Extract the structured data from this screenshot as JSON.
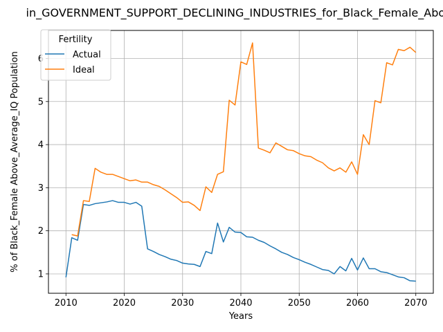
{
  "chart_data": {
    "type": "line",
    "title": "in_GOVERNMENT_SUPPORT_DECLINING_INDUSTRIES_for_Black_Female_Above",
    "xlabel": "Years",
    "ylabel": "% of Black_Female Above_Average_IQ Population",
    "xlim": [
      2007,
      2073
    ],
    "ylim": [
      0.55,
      6.65
    ],
    "xticks": [
      2010,
      2020,
      2030,
      2040,
      2050,
      2060,
      2070
    ],
    "yticks": [
      1,
      2,
      3,
      4,
      5,
      6
    ],
    "grid": true,
    "legend": {
      "title": "Fertility",
      "placement": "top-left"
    },
    "series": [
      {
        "name": "Actual",
        "color": "#1f77b4",
        "x": [
          2010,
          2011,
          2012,
          2013,
          2014,
          2015,
          2016,
          2017,
          2018,
          2019,
          2020,
          2021,
          2022,
          2023,
          2024,
          2025,
          2026,
          2027,
          2028,
          2029,
          2030,
          2031,
          2032,
          2033,
          2034,
          2035,
          2036,
          2037,
          2038,
          2039,
          2040,
          2041,
          2042,
          2043,
          2044,
          2045,
          2046,
          2047,
          2048,
          2049,
          2050,
          2051,
          2052,
          2053,
          2054,
          2055,
          2056,
          2057,
          2058,
          2059,
          2060,
          2061,
          2062,
          2063,
          2064,
          2065,
          2066,
          2067,
          2068,
          2069,
          2070
        ],
        "y": [
          0.92,
          1.84,
          1.78,
          2.61,
          2.59,
          2.63,
          2.65,
          2.67,
          2.7,
          2.66,
          2.66,
          2.62,
          2.66,
          2.57,
          1.58,
          1.52,
          1.45,
          1.4,
          1.34,
          1.31,
          1.25,
          1.23,
          1.22,
          1.17,
          1.52,
          1.47,
          2.18,
          1.74,
          2.08,
          1.97,
          1.96,
          1.86,
          1.85,
          1.78,
          1.73,
          1.65,
          1.58,
          1.5,
          1.45,
          1.38,
          1.33,
          1.27,
          1.22,
          1.16,
          1.1,
          1.08,
          1.0,
          1.17,
          1.07,
          1.36,
          1.09,
          1.37,
          1.12,
          1.12,
          1.05,
          1.03,
          0.98,
          0.93,
          0.91,
          0.84,
          0.83
        ]
      },
      {
        "name": "Ideal",
        "color": "#ff7f0e",
        "x": [
          2011,
          2012,
          2013,
          2014,
          2015,
          2016,
          2017,
          2018,
          2019,
          2020,
          2021,
          2022,
          2023,
          2024,
          2025,
          2026,
          2027,
          2028,
          2029,
          2030,
          2031,
          2032,
          2033,
          2034,
          2035,
          2036,
          2037,
          2038,
          2039,
          2040,
          2041,
          2042,
          2043,
          2044,
          2045,
          2046,
          2047,
          2048,
          2049,
          2050,
          2051,
          2052,
          2053,
          2054,
          2055,
          2056,
          2057,
          2058,
          2059,
          2060,
          2061,
          2062,
          2063,
          2064,
          2065,
          2066,
          2067,
          2068,
          2069,
          2070
        ],
        "y": [
          1.91,
          1.88,
          2.7,
          2.68,
          3.45,
          3.36,
          3.31,
          3.31,
          3.26,
          3.21,
          3.16,
          3.18,
          3.13,
          3.13,
          3.07,
          3.03,
          2.95,
          2.86,
          2.77,
          2.66,
          2.67,
          2.59,
          2.47,
          3.02,
          2.89,
          3.31,
          3.37,
          5.03,
          4.92,
          5.92,
          5.86,
          6.36,
          3.92,
          3.87,
          3.81,
          4.04,
          3.96,
          3.88,
          3.86,
          3.79,
          3.74,
          3.72,
          3.64,
          3.58,
          3.46,
          3.39,
          3.46,
          3.36,
          3.6,
          3.31,
          4.23,
          4.0,
          5.02,
          4.97,
          5.9,
          5.85,
          6.21,
          6.18,
          6.26,
          6.14
        ]
      }
    ]
  }
}
